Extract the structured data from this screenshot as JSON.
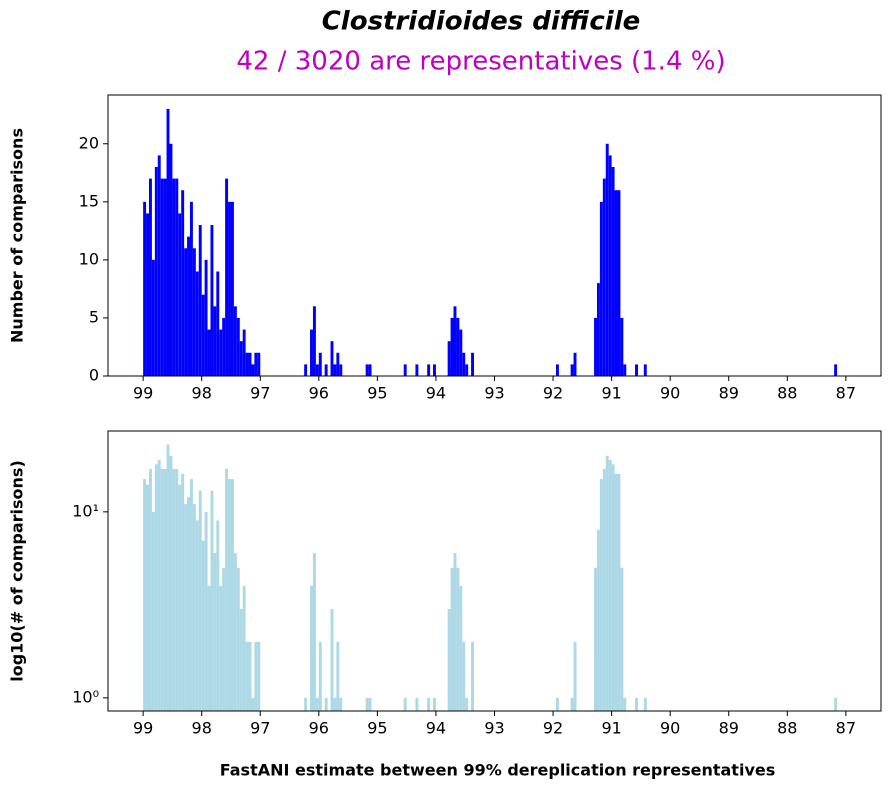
{
  "chart_data": [
    {
      "type": "histogram",
      "title": "Clostridioides difficile",
      "subtitle": "42 / 3020 are representatives (1.4 %)",
      "ylabel": "Number of comparisons",
      "color": "#0000ff",
      "yscale": "linear",
      "xlim": [
        99.6,
        86.4
      ],
      "xticks": [
        99,
        98,
        97,
        96,
        95,
        94,
        93,
        92,
        91,
        90,
        89,
        88,
        87
      ],
      "ylim": [
        0,
        24.2
      ],
      "yticks": [
        0,
        5,
        10,
        15,
        20
      ],
      "bins": [
        87.15,
        87.2,
        87.25,
        87.3,
        87.35,
        87.4,
        87.45,
        87.5,
        87.55,
        87.6,
        87.65,
        87.7,
        87.75,
        87.8,
        87.85,
        87.9,
        87.95,
        88,
        88.05,
        88.1,
        88.15,
        88.2,
        88.25,
        88.3,
        88.35,
        88.4,
        88.45,
        88.5,
        88.55,
        88.6,
        88.65,
        88.7,
        88.75,
        88.8,
        88.85,
        88.9,
        88.95,
        89,
        89.05,
        89.1,
        89.15,
        89.2,
        89.25,
        89.3,
        89.35,
        89.4,
        89.45,
        89.5,
        89.55,
        89.6,
        89.65,
        89.7,
        89.75,
        89.8,
        89.85,
        89.9,
        89.95,
        90,
        90.05,
        90.1,
        90.15,
        90.2,
        90.25,
        90.3,
        90.35,
        90.4,
        90.45,
        90.5,
        90.55,
        90.6,
        90.65,
        90.7,
        90.75,
        90.8,
        90.85,
        90.9,
        90.95,
        91,
        91.05,
        91.1,
        91.15,
        91.2,
        91.25,
        91.3,
        91.35,
        91.4,
        91.45,
        91.5,
        91.55,
        91.6,
        91.65,
        91.7,
        91.75,
        91.8,
        91.85,
        91.9,
        91.95,
        92,
        92.05,
        92.1,
        92.15,
        92.2,
        92.25,
        92.3,
        92.35,
        92.4,
        92.45,
        92.5,
        92.55,
        92.6,
        92.65,
        92.7,
        92.75,
        92.8,
        92.85,
        92.9,
        92.95,
        93,
        93.05,
        93.1,
        93.15,
        93.2,
        93.25,
        93.3,
        93.35,
        93.4,
        93.45,
        93.5,
        93.55,
        93.6,
        93.65,
        93.7,
        93.75,
        93.8,
        93.85,
        93.9,
        93.95,
        94,
        94.05,
        94.1,
        94.15,
        94.2,
        94.25,
        94.3,
        94.35,
        94.4,
        94.45,
        94.5,
        94.55,
        94.6,
        94.65,
        94.7,
        94.75,
        94.8,
        94.85,
        94.9,
        94.95,
        95,
        95.05,
        95.1,
        95.15,
        95.2,
        95.25,
        95.3,
        95.35,
        95.4,
        95.45,
        95.5,
        95.55,
        95.6,
        95.65,
        95.7,
        95.75,
        95.8,
        95.85,
        95.9,
        95.95,
        96,
        96.05,
        96.1,
        96.15,
        96.2,
        96.25,
        96.3,
        96.35,
        96.4,
        96.45,
        96.5,
        96.55,
        96.6,
        96.65,
        96.7,
        96.75,
        96.8,
        96.85,
        96.9,
        96.95,
        97,
        97.05,
        97.1,
        97.15,
        97.2,
        97.25,
        97.3,
        97.35,
        97.4,
        97.45,
        97.5,
        97.55,
        97.6,
        97.65,
        97.7,
        97.75,
        97.8,
        97.85,
        97.9,
        97.95,
        98,
        98.05,
        98.1,
        98.15,
        98.2,
        98.25,
        98.3,
        98.35,
        98.4,
        98.45,
        98.5,
        98.55,
        98.6,
        98.65,
        98.7,
        98.75,
        98.8,
        98.85,
        98.9,
        98.95,
        99
      ],
      "values": [
        1,
        0,
        0,
        0,
        0,
        0,
        0,
        0,
        0,
        0,
        0,
        0,
        0,
        0,
        0,
        0,
        0,
        0,
        0,
        0,
        0,
        0,
        0,
        0,
        0,
        0,
        0,
        0,
        0,
        0,
        0,
        0,
        0,
        0,
        0,
        0,
        0,
        0,
        0,
        0,
        0,
        0,
        0,
        0,
        0,
        0,
        0,
        0,
        0,
        0,
        0,
        0,
        0,
        0,
        0,
        0,
        0,
        0,
        0,
        0,
        0,
        0,
        0,
        0,
        0,
        1,
        0,
        0,
        1,
        0,
        0,
        0,
        1,
        5,
        16,
        16,
        18,
        19,
        20,
        17,
        15,
        8,
        5,
        0,
        0,
        0,
        0,
        0,
        0,
        2,
        1,
        0,
        0,
        0,
        0,
        1,
        0,
        0,
        0,
        0,
        0,
        0,
        0,
        0,
        0,
        0,
        0,
        0,
        0,
        0,
        0,
        0,
        0,
        0,
        0,
        0,
        0,
        0,
        0,
        0,
        0,
        0,
        0,
        0,
        2,
        0,
        1,
        2,
        4,
        5,
        6,
        5,
        3,
        0,
        0,
        0,
        0,
        1,
        0,
        1,
        0,
        0,
        0,
        1,
        0,
        0,
        0,
        1,
        0,
        0,
        0,
        0,
        0,
        0,
        0,
        0,
        0,
        0,
        0,
        1,
        1,
        0,
        0,
        0,
        0,
        0,
        0,
        0,
        0,
        1,
        2,
        1,
        3,
        0,
        1,
        0,
        2,
        1,
        6,
        4,
        0,
        1,
        0,
        0,
        0,
        0,
        0,
        0,
        0,
        0,
        0,
        0,
        0,
        0,
        0,
        0,
        0,
        2,
        2,
        1,
        2,
        2,
        4,
        3,
        5,
        6,
        15,
        15,
        17,
        5,
        4,
        9,
        6,
        13,
        4,
        10,
        7,
        13,
        9,
        11,
        15,
        12,
        11,
        16,
        14,
        17,
        17,
        20,
        23,
        17,
        17,
        19,
        18,
        10,
        17,
        14,
        15
      ]
    },
    {
      "type": "histogram",
      "ylabel": "log10(# of comparisons)",
      "xlabel": "FastANI estimate between 99% dereplication representatives",
      "color": "#add8e6",
      "yscale": "log",
      "xlim": [
        99.6,
        86.4
      ],
      "xticks": [
        99,
        98,
        97,
        96,
        95,
        94,
        93,
        92,
        91,
        90,
        89,
        88,
        87
      ],
      "ylim": [
        0.85,
        27.2
      ],
      "yticks": [
        {
          "value": 1,
          "label": "10⁰"
        },
        {
          "value": 10,
          "label": "10¹"
        }
      ],
      "bins": [
        87.15,
        87.2,
        87.25,
        87.3,
        87.35,
        87.4,
        87.45,
        87.5,
        87.55,
        87.6,
        87.65,
        87.7,
        87.75,
        87.8,
        87.85,
        87.9,
        87.95,
        88,
        88.05,
        88.1,
        88.15,
        88.2,
        88.25,
        88.3,
        88.35,
        88.4,
        88.45,
        88.5,
        88.55,
        88.6,
        88.65,
        88.7,
        88.75,
        88.8,
        88.85,
        88.9,
        88.95,
        89,
        89.05,
        89.1,
        89.15,
        89.2,
        89.25,
        89.3,
        89.35,
        89.4,
        89.45,
        89.5,
        89.55,
        89.6,
        89.65,
        89.7,
        89.75,
        89.8,
        89.85,
        89.9,
        89.95,
        90,
        90.05,
        90.1,
        90.15,
        90.2,
        90.25,
        90.3,
        90.35,
        90.4,
        90.45,
        90.5,
        90.55,
        90.6,
        90.65,
        90.7,
        90.75,
        90.8,
        90.85,
        90.9,
        90.95,
        91,
        91.05,
        91.1,
        91.15,
        91.2,
        91.25,
        91.3,
        91.35,
        91.4,
        91.45,
        91.5,
        91.55,
        91.6,
        91.65,
        91.7,
        91.75,
        91.8,
        91.85,
        91.9,
        91.95,
        92,
        92.05,
        92.1,
        92.15,
        92.2,
        92.25,
        92.3,
        92.35,
        92.4,
        92.45,
        92.5,
        92.55,
        92.6,
        92.65,
        92.7,
        92.75,
        92.8,
        92.85,
        92.9,
        92.95,
        93,
        93.05,
        93.1,
        93.15,
        93.2,
        93.25,
        93.3,
        93.35,
        93.4,
        93.45,
        93.5,
        93.55,
        93.6,
        93.65,
        93.7,
        93.75,
        93.8,
        93.85,
        93.9,
        93.95,
        94,
        94.05,
        94.1,
        94.15,
        94.2,
        94.25,
        94.3,
        94.35,
        94.4,
        94.45,
        94.5,
        94.55,
        94.6,
        94.65,
        94.7,
        94.75,
        94.8,
        94.85,
        94.9,
        94.95,
        95,
        95.05,
        95.1,
        95.15,
        95.2,
        95.25,
        95.3,
        95.35,
        95.4,
        95.45,
        95.5,
        95.55,
        95.6,
        95.65,
        95.7,
        95.75,
        95.8,
        95.85,
        95.9,
        95.95,
        96,
        96.05,
        96.1,
        96.15,
        96.2,
        96.25,
        96.3,
        96.35,
        96.4,
        96.45,
        96.5,
        96.55,
        96.6,
        96.65,
        96.7,
        96.75,
        96.8,
        96.85,
        96.9,
        96.95,
        97,
        97.05,
        97.1,
        97.15,
        97.2,
        97.25,
        97.3,
        97.35,
        97.4,
        97.45,
        97.5,
        97.55,
        97.6,
        97.65,
        97.7,
        97.75,
        97.8,
        97.85,
        97.9,
        97.95,
        98,
        98.05,
        98.1,
        98.15,
        98.2,
        98.25,
        98.3,
        98.35,
        98.4,
        98.45,
        98.5,
        98.55,
        98.6,
        98.65,
        98.7,
        98.75,
        98.8,
        98.85,
        98.9,
        98.95,
        99
      ],
      "values": [
        1,
        0,
        0,
        0,
        0,
        0,
        0,
        0,
        0,
        0,
        0,
        0,
        0,
        0,
        0,
        0,
        0,
        0,
        0,
        0,
        0,
        0,
        0,
        0,
        0,
        0,
        0,
        0,
        0,
        0,
        0,
        0,
        0,
        0,
        0,
        0,
        0,
        0,
        0,
        0,
        0,
        0,
        0,
        0,
        0,
        0,
        0,
        0,
        0,
        0,
        0,
        0,
        0,
        0,
        0,
        0,
        0,
        0,
        0,
        0,
        0,
        0,
        0,
        0,
        0,
        1,
        0,
        0,
        1,
        0,
        0,
        0,
        1,
        5,
        16,
        16,
        18,
        19,
        20,
        17,
        15,
        8,
        5,
        0,
        0,
        0,
        0,
        0,
        0,
        2,
        1,
        0,
        0,
        0,
        0,
        1,
        0,
        0,
        0,
        0,
        0,
        0,
        0,
        0,
        0,
        0,
        0,
        0,
        0,
        0,
        0,
        0,
        0,
        0,
        0,
        0,
        0,
        0,
        0,
        0,
        0,
        0,
        0,
        0,
        2,
        0,
        1,
        2,
        4,
        5,
        6,
        5,
        3,
        0,
        0,
        0,
        0,
        1,
        0,
        1,
        0,
        0,
        0,
        1,
        0,
        0,
        0,
        1,
        0,
        0,
        0,
        0,
        0,
        0,
        0,
        0,
        0,
        0,
        0,
        1,
        1,
        0,
        0,
        0,
        0,
        0,
        0,
        0,
        0,
        1,
        2,
        1,
        3,
        0,
        1,
        0,
        2,
        1,
        6,
        4,
        0,
        1,
        0,
        0,
        0,
        0,
        0,
        0,
        0,
        0,
        0,
        0,
        0,
        0,
        0,
        0,
        0,
        2,
        2,
        1,
        2,
        2,
        4,
        3,
        5,
        6,
        15,
        15,
        17,
        5,
        4,
        9,
        6,
        13,
        4,
        10,
        7,
        13,
        9,
        11,
        15,
        12,
        11,
        16,
        14,
        17,
        17,
        20,
        23,
        17,
        17,
        19,
        18,
        10,
        17,
        14,
        15
      ]
    }
  ]
}
